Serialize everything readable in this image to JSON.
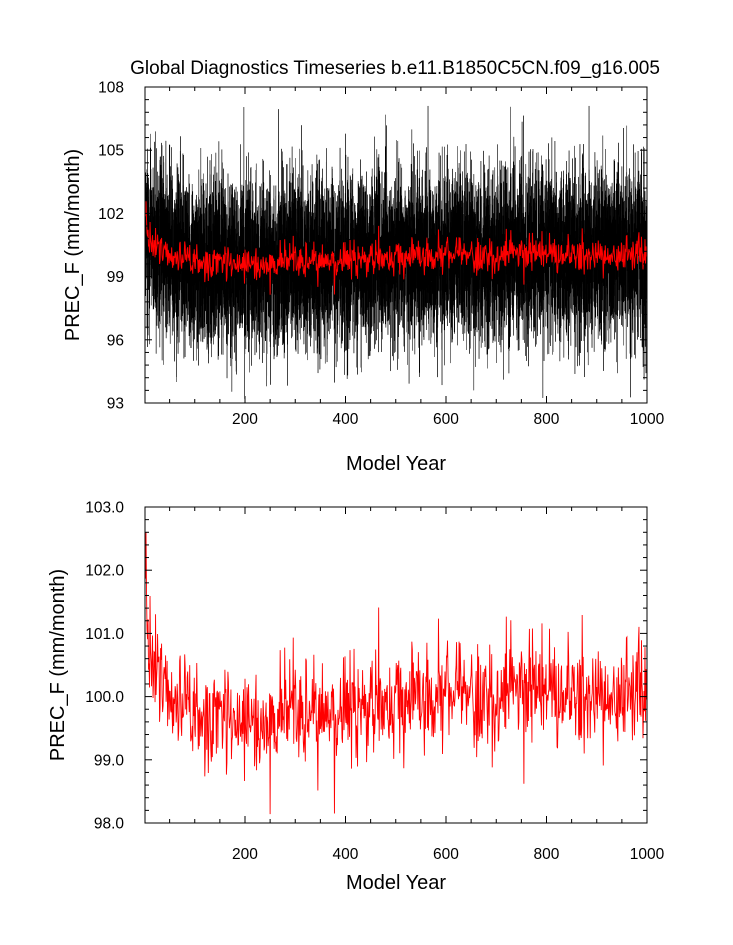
{
  "chart_data": [
    {
      "type": "line",
      "title": "Global Diagnostics Timeseries b.e11.B1850C5CN.f09_g16.005",
      "xlabel": "Model Year",
      "ylabel": "PREC_F (mm/month)",
      "xlim": [
        1,
        1000
      ],
      "ylim": [
        93,
        108
      ],
      "xticks": [
        200,
        400,
        600,
        800,
        1000
      ],
      "yticks": [
        93,
        96,
        99,
        102,
        105,
        108
      ],
      "ytick_labels": [
        "93",
        "96",
        "99",
        "102",
        "105",
        "108"
      ],
      "grid": false,
      "series": [
        {
          "color": "#000000",
          "description": "monthly values",
          "points_per_year": 12,
          "typical_range": [
            96.5,
            103.5
          ],
          "extremes": [
            93.2,
            107.1
          ]
        },
        {
          "color": "#ff0000",
          "description": "annual mean",
          "anchor_x": [
            1,
            5,
            10,
            20,
            40,
            60,
            100,
            150,
            200,
            300,
            400,
            500,
            600,
            700,
            800,
            900,
            1000
          ],
          "anchor_y": [
            102.6,
            101.3,
            100.8,
            100.4,
            100.1,
            99.9,
            99.7,
            99.6,
            99.6,
            99.7,
            99.8,
            99.9,
            100.0,
            100.0,
            100.0,
            99.9,
            100.2
          ]
        }
      ]
    },
    {
      "type": "line",
      "title": "",
      "xlabel": "Model Year",
      "ylabel": "PREC_F (mm/month)",
      "xlim": [
        1,
        1000
      ],
      "ylim": [
        98,
        103
      ],
      "xticks": [
        200,
        400,
        600,
        800,
        1000
      ],
      "yticks": [
        98,
        99,
        100,
        101,
        102,
        103
      ],
      "ytick_labels": [
        "98.0",
        "99.0",
        "100.0",
        "101.0",
        "102.0",
        "103.0"
      ],
      "grid": false,
      "series": [
        {
          "color": "#ff0000",
          "description": "annual mean",
          "anchor_x": [
            1,
            3,
            6,
            10,
            20,
            40,
            60,
            100,
            150,
            200,
            300,
            400,
            500,
            600,
            700,
            800,
            900,
            1000
          ],
          "anchor_y": [
            102.6,
            101.6,
            101.0,
            100.7,
            100.4,
            100.1,
            99.9,
            99.7,
            99.6,
            99.6,
            99.7,
            99.8,
            99.9,
            100.0,
            100.0,
            100.0,
            99.9,
            100.2
          ],
          "noise_sd": 0.5,
          "max_point": {
            "x": 3,
            "y": 102.6
          },
          "min_point": {
            "x": 378,
            "y": 98.15
          }
        }
      ]
    }
  ]
}
